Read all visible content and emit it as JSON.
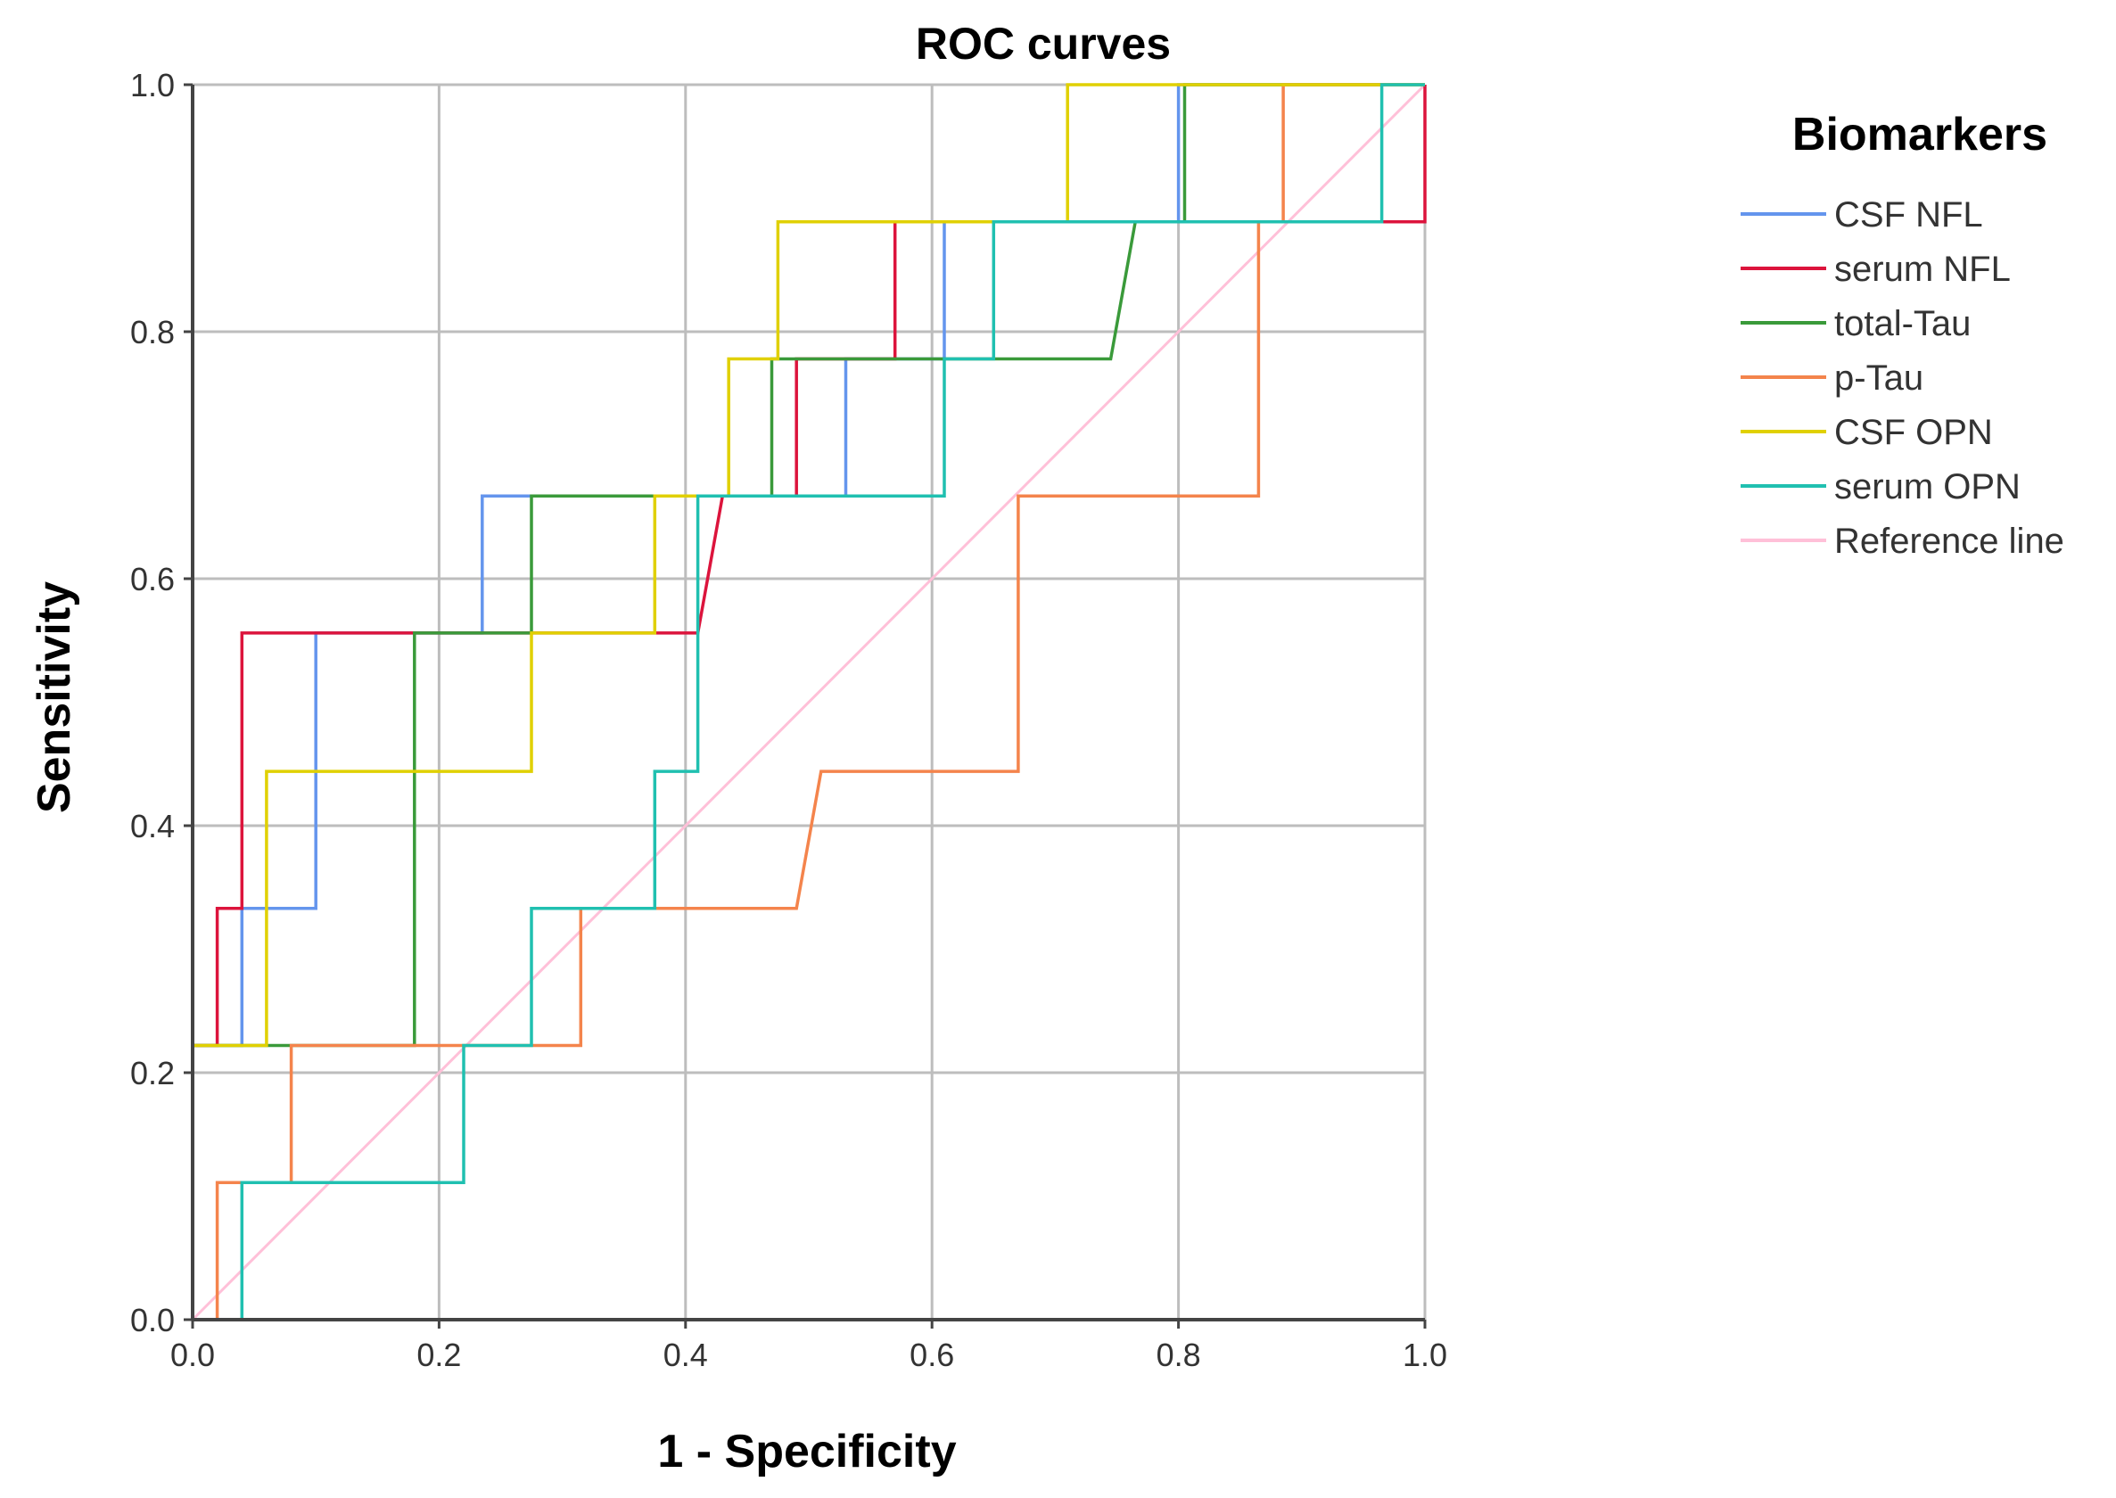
{
  "chart_data": {
    "type": "line",
    "title": "ROC curves",
    "xlabel": "1 - Specificity",
    "ylabel": "Sensitivity",
    "xlim": [
      0,
      1
    ],
    "ylim": [
      0,
      1
    ],
    "x_ticks": [
      "0.0",
      "0.2",
      "0.4",
      "0.6",
      "0.8",
      "1.0"
    ],
    "y_ticks": [
      "0.0",
      "0.2",
      "0.4",
      "0.6",
      "0.8",
      "1.0"
    ],
    "grid": true,
    "legend_title": "Biomarkers",
    "legend_position": "right",
    "series": [
      {
        "name": "CSF NFL",
        "color": "#6495ed",
        "points": [
          [
            0,
            0
          ],
          [
            0,
            0.222
          ],
          [
            0.04,
            0.222
          ],
          [
            0.04,
            0.333
          ],
          [
            0.1,
            0.333
          ],
          [
            0.1,
            0.556
          ],
          [
            0.235,
            0.556
          ],
          [
            0.235,
            0.667
          ],
          [
            0.53,
            0.667
          ],
          [
            0.53,
            0.778
          ],
          [
            0.61,
            0.778
          ],
          [
            0.61,
            0.889
          ],
          [
            0.8,
            0.889
          ],
          [
            0.8,
            1.0
          ],
          [
            1.0,
            1.0
          ]
        ]
      },
      {
        "name": "serum NFL",
        "color": "#dc143c",
        "points": [
          [
            0,
            0
          ],
          [
            0,
            0.222
          ],
          [
            0.02,
            0.222
          ],
          [
            0.02,
            0.333
          ],
          [
            0.04,
            0.333
          ],
          [
            0.04,
            0.556
          ],
          [
            0.41,
            0.556
          ],
          [
            0.43,
            0.667
          ],
          [
            0.49,
            0.667
          ],
          [
            0.49,
            0.778
          ],
          [
            0.57,
            0.778
          ],
          [
            0.57,
            0.889
          ],
          [
            1.0,
            0.889
          ],
          [
            1.0,
            1.0
          ]
        ]
      },
      {
        "name": "total-Tau",
        "color": "#3a9a3a",
        "points": [
          [
            0,
            0
          ],
          [
            0,
            0.222
          ],
          [
            0.18,
            0.222
          ],
          [
            0.18,
            0.556
          ],
          [
            0.275,
            0.556
          ],
          [
            0.275,
            0.667
          ],
          [
            0.47,
            0.667
          ],
          [
            0.47,
            0.778
          ],
          [
            0.745,
            0.778
          ],
          [
            0.765,
            0.889
          ],
          [
            0.805,
            0.889
          ],
          [
            0.805,
            1.0
          ],
          [
            1.0,
            1.0
          ]
        ]
      },
      {
        "name": "p-Tau",
        "color": "#f4844c",
        "points": [
          [
            0,
            0
          ],
          [
            0.02,
            0
          ],
          [
            0.02,
            0.111
          ],
          [
            0.08,
            0.111
          ],
          [
            0.08,
            0.222
          ],
          [
            0.315,
            0.222
          ],
          [
            0.315,
            0.333
          ],
          [
            0.49,
            0.333
          ],
          [
            0.51,
            0.444
          ],
          [
            0.67,
            0.444
          ],
          [
            0.67,
            0.667
          ],
          [
            0.865,
            0.667
          ],
          [
            0.865,
            0.889
          ],
          [
            0.885,
            0.889
          ],
          [
            0.885,
            1.0
          ],
          [
            1.0,
            1.0
          ]
        ]
      },
      {
        "name": "CSF OPN",
        "color": "#e0d000",
        "points": [
          [
            0,
            0
          ],
          [
            0,
            0.222
          ],
          [
            0.06,
            0.222
          ],
          [
            0.06,
            0.444
          ],
          [
            0.275,
            0.444
          ],
          [
            0.275,
            0.556
          ],
          [
            0.375,
            0.556
          ],
          [
            0.375,
            0.667
          ],
          [
            0.435,
            0.667
          ],
          [
            0.435,
            0.778
          ],
          [
            0.475,
            0.778
          ],
          [
            0.475,
            0.889
          ],
          [
            0.71,
            0.889
          ],
          [
            0.71,
            1.0
          ],
          [
            1.0,
            1.0
          ]
        ]
      },
      {
        "name": "serum OPN",
        "color": "#20c0b0",
        "points": [
          [
            0,
            0
          ],
          [
            0.04,
            0
          ],
          [
            0.04,
            0.111
          ],
          [
            0.22,
            0.111
          ],
          [
            0.22,
            0.222
          ],
          [
            0.275,
            0.222
          ],
          [
            0.275,
            0.333
          ],
          [
            0.375,
            0.333
          ],
          [
            0.375,
            0.444
          ],
          [
            0.41,
            0.444
          ],
          [
            0.41,
            0.667
          ],
          [
            0.61,
            0.667
          ],
          [
            0.61,
            0.778
          ],
          [
            0.65,
            0.778
          ],
          [
            0.65,
            0.889
          ],
          [
            0.965,
            0.889
          ],
          [
            0.965,
            1.0
          ],
          [
            1.0,
            1.0
          ]
        ]
      },
      {
        "name": "Reference line",
        "color": "#ffc0d8",
        "points": [
          [
            0,
            0
          ],
          [
            1,
            1
          ]
        ]
      }
    ]
  },
  "colors": {
    "grid": "#bdbdbd",
    "axis": "#444444",
    "background": "#ffffff"
  }
}
